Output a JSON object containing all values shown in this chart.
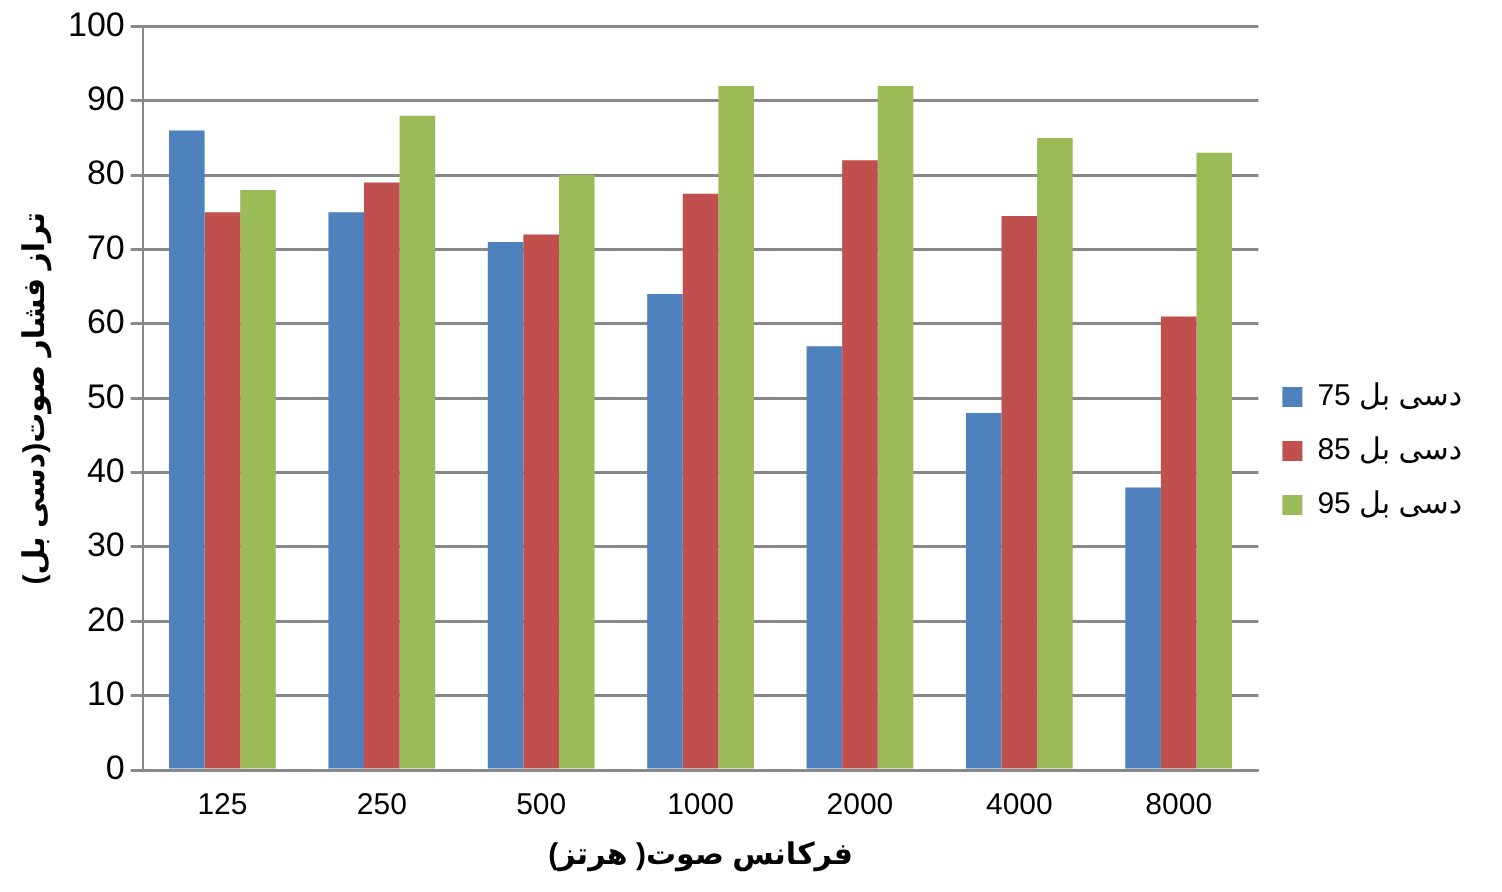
{
  "chart_data": {
    "type": "bar",
    "xlabel": "فرکانس صوت( هرتز)",
    "ylabel": "تراز فشار صوت(دسی بل)",
    "categories": [
      "125",
      "250",
      "500",
      "1000",
      "2000",
      "4000",
      "8000"
    ],
    "series": [
      {
        "name": "75 دسی بل",
        "color": "#4f81bd",
        "values": [
          86,
          75,
          71,
          64,
          57,
          48,
          38
        ]
      },
      {
        "name": "دسی بل 85",
        "color": "#c0504d",
        "values": [
          75,
          79,
          72,
          77.5,
          82,
          74.5,
          61
        ]
      },
      {
        "name": "95 دسی بل",
        "color": "#9bbb59",
        "values": [
          78,
          88,
          80,
          92,
          92,
          85,
          83
        ]
      }
    ],
    "ylim": [
      0,
      100
    ],
    "yticks": [
      0,
      10,
      20,
      30,
      40,
      50,
      60,
      70,
      80,
      90,
      100
    ],
    "grid": "y",
    "legend": "right"
  }
}
